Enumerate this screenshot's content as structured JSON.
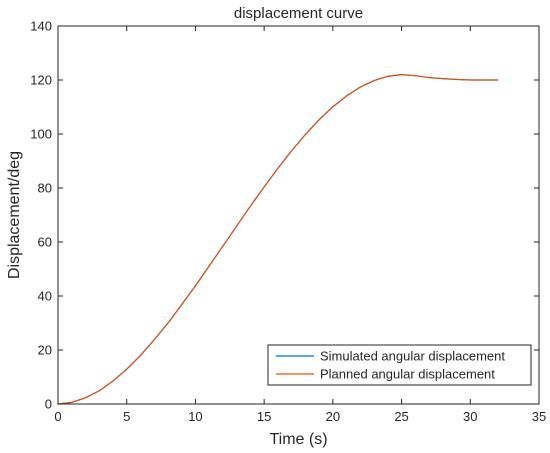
{
  "chart_data": {
    "type": "line",
    "title": "displacement curve",
    "xlabel": "Time (s)",
    "ylabel": "Displacement/deg",
    "xlim": [
      0,
      35
    ],
    "ylim": [
      0,
      140
    ],
    "xticks": [
      0,
      5,
      10,
      15,
      20,
      25,
      30,
      35
    ],
    "yticks": [
      0,
      20,
      40,
      60,
      80,
      100,
      120,
      140
    ],
    "xtick_labels": [
      "0",
      "5",
      "10",
      "15",
      "20",
      "25",
      "30",
      "35"
    ],
    "ytick_labels": [
      "0",
      "20",
      "40",
      "60",
      "80",
      "100",
      "120",
      "140"
    ],
    "grid": false,
    "legend_position": "bottom-right",
    "series": [
      {
        "name": "Simulated angular displacement",
        "color": "#0072BD",
        "x": [
          0,
          1,
          2,
          3,
          4,
          5,
          6,
          7,
          8,
          9,
          10,
          11,
          12,
          13,
          14,
          15,
          16,
          17,
          18,
          19,
          20,
          21,
          22,
          23,
          24,
          25,
          26,
          27,
          28,
          29,
          30,
          31,
          32
        ],
        "y": [
          0,
          0.6,
          2.3,
          4.9,
          8.5,
          12.9,
          18.0,
          23.8,
          30.0,
          36.8,
          43.8,
          51.1,
          58.5,
          65.9,
          73.3,
          80.4,
          87.3,
          93.8,
          99.8,
          105.3,
          110.1,
          114.1,
          117.4,
          119.8,
          121.4,
          122.0,
          121.6,
          120.9,
          120.5,
          120.2,
          120.0,
          120.0,
          120.0
        ]
      },
      {
        "name": "Planned angular displacement",
        "color": "#D95319",
        "x": [
          0,
          1,
          2,
          3,
          4,
          5,
          6,
          7,
          8,
          9,
          10,
          11,
          12,
          13,
          14,
          15,
          16,
          17,
          18,
          19,
          20,
          21,
          22,
          23,
          24,
          25,
          26,
          27,
          28,
          29,
          30,
          31,
          32
        ],
        "y": [
          0,
          0.6,
          2.3,
          4.9,
          8.5,
          12.9,
          18.0,
          23.8,
          30.0,
          36.8,
          43.8,
          51.1,
          58.5,
          65.9,
          73.3,
          80.4,
          87.3,
          93.8,
          99.8,
          105.3,
          110.1,
          114.1,
          117.4,
          119.8,
          121.4,
          122.0,
          121.6,
          120.9,
          120.5,
          120.2,
          120.0,
          120.0,
          120.0
        ]
      }
    ]
  }
}
